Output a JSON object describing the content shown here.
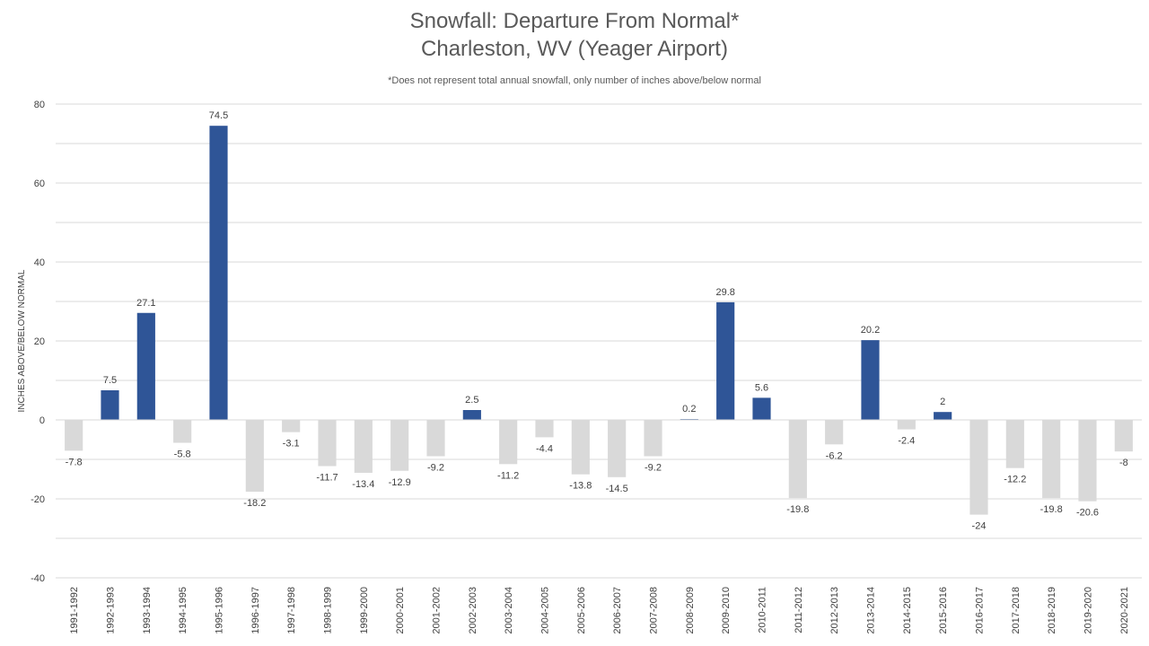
{
  "chart_data": {
    "type": "bar",
    "title": "Snowfall: Departure From Normal*",
    "title_line2": "Charleston, WV (Yeager Airport)",
    "subtitle": "*Does not represent  total annual snowfall, only number of inches above/below normal",
    "ylabel": "INCHES ABOVE/BELOW NORMAL",
    "xlabel": "",
    "ylim": [
      -40,
      80
    ],
    "yticks": [
      -40,
      -20,
      0,
      20,
      40,
      60,
      80
    ],
    "grid": true,
    "legend": "none",
    "colors": {
      "positive": "#2F5597",
      "negative": "#D9D9D9"
    },
    "categories": [
      "1991-1992",
      "1992-1993",
      "1993-1994",
      "1994-1995",
      "1995-1996",
      "1996-1997",
      "1997-1998",
      "1998-1999",
      "1999-2000",
      "2000-2001",
      "2001-2002",
      "2002-2003",
      "2003-2004",
      "2004-2005",
      "2005-2006",
      "2006-2007",
      "2007-2008",
      "2008-2009",
      "2009-2010",
      "2010-2011",
      "2011-2012",
      "2012-2013",
      "2013-2014",
      "2014-2015",
      "2015-2016",
      "2016-2017",
      "2017-2018",
      "2018-2019",
      "2019-2020",
      "2020-2021"
    ],
    "values": [
      -7.8,
      7.5,
      27.1,
      -5.8,
      74.5,
      -18.2,
      -3.1,
      -11.7,
      -13.4,
      -12.9,
      -9.2,
      2.5,
      -11.2,
      -4.4,
      -13.8,
      -14.5,
      -9.2,
      0.2,
      29.8,
      5.6,
      -19.8,
      -6.2,
      20.2,
      -2.4,
      2,
      -24,
      -12.2,
      -19.8,
      -20.6,
      -8
    ]
  }
}
